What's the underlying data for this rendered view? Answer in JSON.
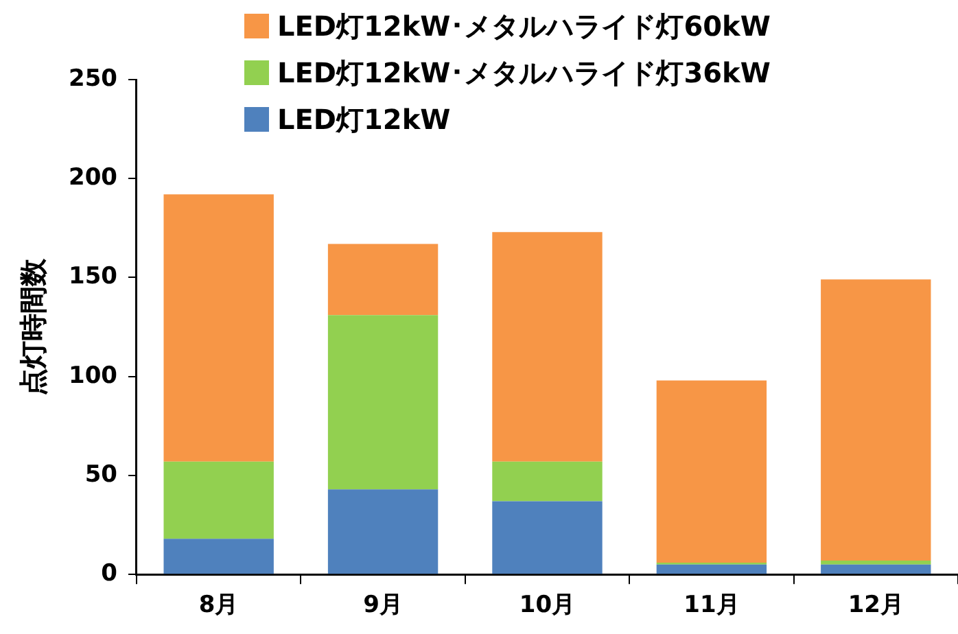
{
  "chart_data": {
    "type": "bar",
    "stacked": true,
    "ylabel": "点灯時間数",
    "categories": [
      "8月",
      "9月",
      "10月",
      "11月",
      "12月"
    ],
    "series": [
      {
        "name": "LED灯12kW",
        "color": "#4f81bd",
        "values": [
          18,
          43,
          37,
          5,
          5
        ]
      },
      {
        "name": "LED灯12kW･メタルハライド灯36kW",
        "color": "#92d050",
        "values": [
          39,
          88,
          20,
          1,
          2
        ]
      },
      {
        "name": "LED灯12kW･メタルハライド灯60kW",
        "color": "#f79646",
        "values": [
          135,
          36,
          116,
          92,
          142
        ]
      }
    ],
    "ylim": [
      0,
      250
    ],
    "yticks": [
      0,
      50,
      100,
      150,
      200,
      250
    ],
    "grid": false,
    "legend": "top"
  }
}
